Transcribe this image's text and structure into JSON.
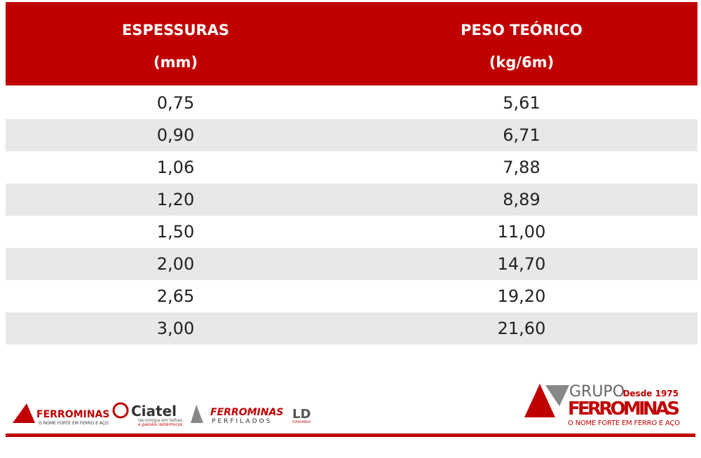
{
  "table": {
    "columns": [
      {
        "title": "ESPESSURAS",
        "unit": "(mm)"
      },
      {
        "title": "PESO TEÓRICO",
        "unit": "(kg/6m)"
      }
    ],
    "rows": [
      [
        "0,75",
        "5,61"
      ],
      [
        "0,90",
        "6,71"
      ],
      [
        "1,06",
        "7,88"
      ],
      [
        "1,20",
        "8,89"
      ],
      [
        "1,50",
        "11,00"
      ],
      [
        "2,00",
        "14,70"
      ],
      [
        "2,65",
        "19,20"
      ],
      [
        "3,00",
        "21,60"
      ]
    ]
  },
  "footer": {
    "brands": [
      {
        "name": "FERROMINAS",
        "tagline": "O NOME FORTE EM FERRO E AÇO"
      },
      {
        "name": "Ciatel",
        "tagline": "tecnologia em telhas",
        "tagline2": "e painéis isotérmicos"
      },
      {
        "name": "FERROMINAS",
        "tagline": "PERFILADOS"
      },
      {
        "name": "LD",
        "tagline": "FERROMINAS"
      }
    ],
    "group": {
      "prefix": "GRUPO",
      "since": "Desde 1975",
      "name": "FERROMINAS",
      "tagline": "O NOME FORTE EM FERRO E AÇO"
    }
  }
}
